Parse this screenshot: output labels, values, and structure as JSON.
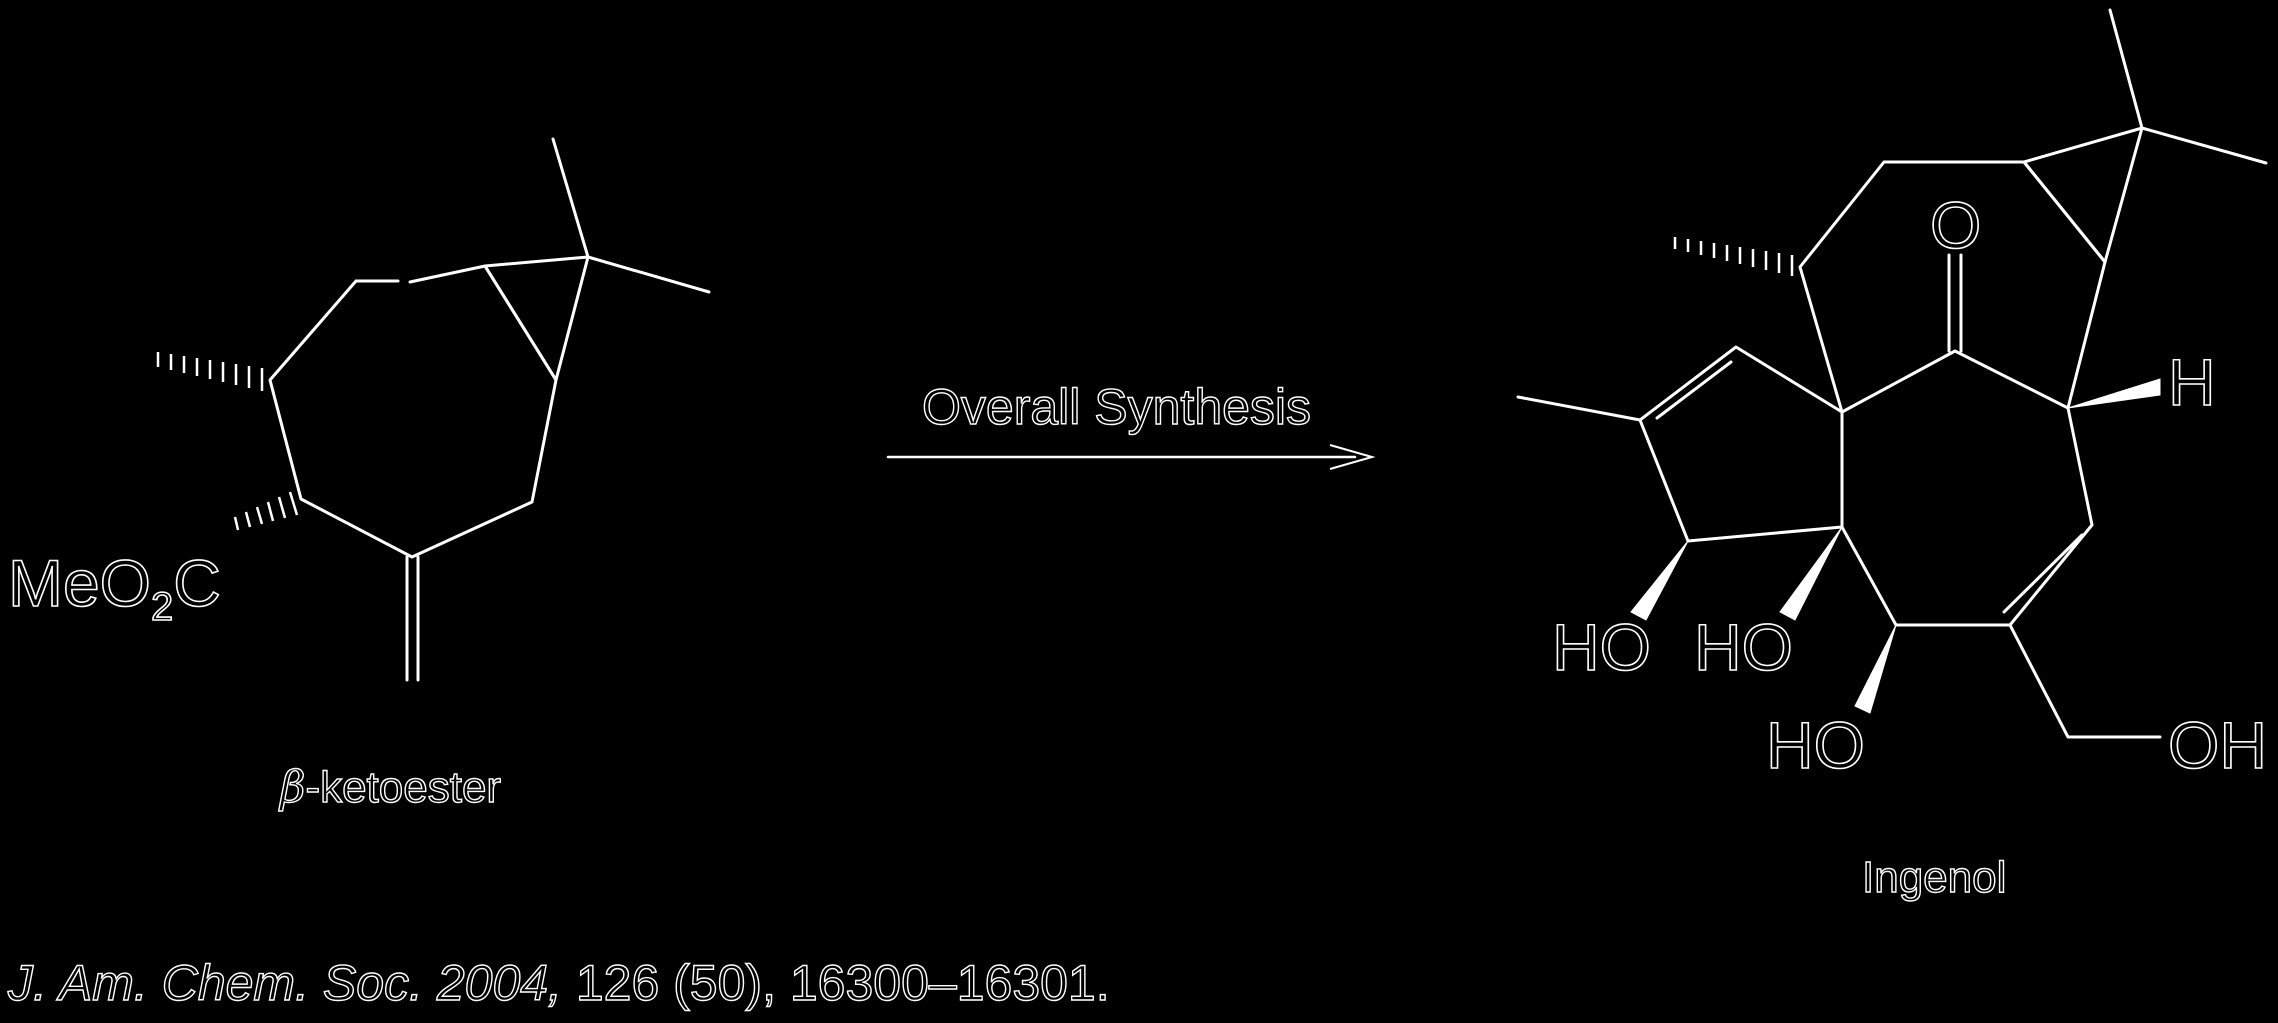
{
  "reaction": {
    "arrow_label": "Overall Synthesis",
    "starting_material": {
      "substituent_label": "MeO",
      "substituent_subscript": "2",
      "substituent_suffix": "C",
      "caption_greek": "β",
      "caption_rest": "-ketoester"
    },
    "product": {
      "label_h": "H",
      "label_oh1": "HO",
      "label_oh2": "HO",
      "label_oh3": "HO",
      "label_oh4": "OH",
      "label_o": "O",
      "caption": "Ingenol"
    }
  },
  "citation": {
    "journal": "J. Am. Chem. Soc.",
    "year": "2004,",
    "rest": " 126 (50), 16300–16301."
  },
  "colors": {
    "background": "#000000",
    "stroke": "#ffffff"
  }
}
